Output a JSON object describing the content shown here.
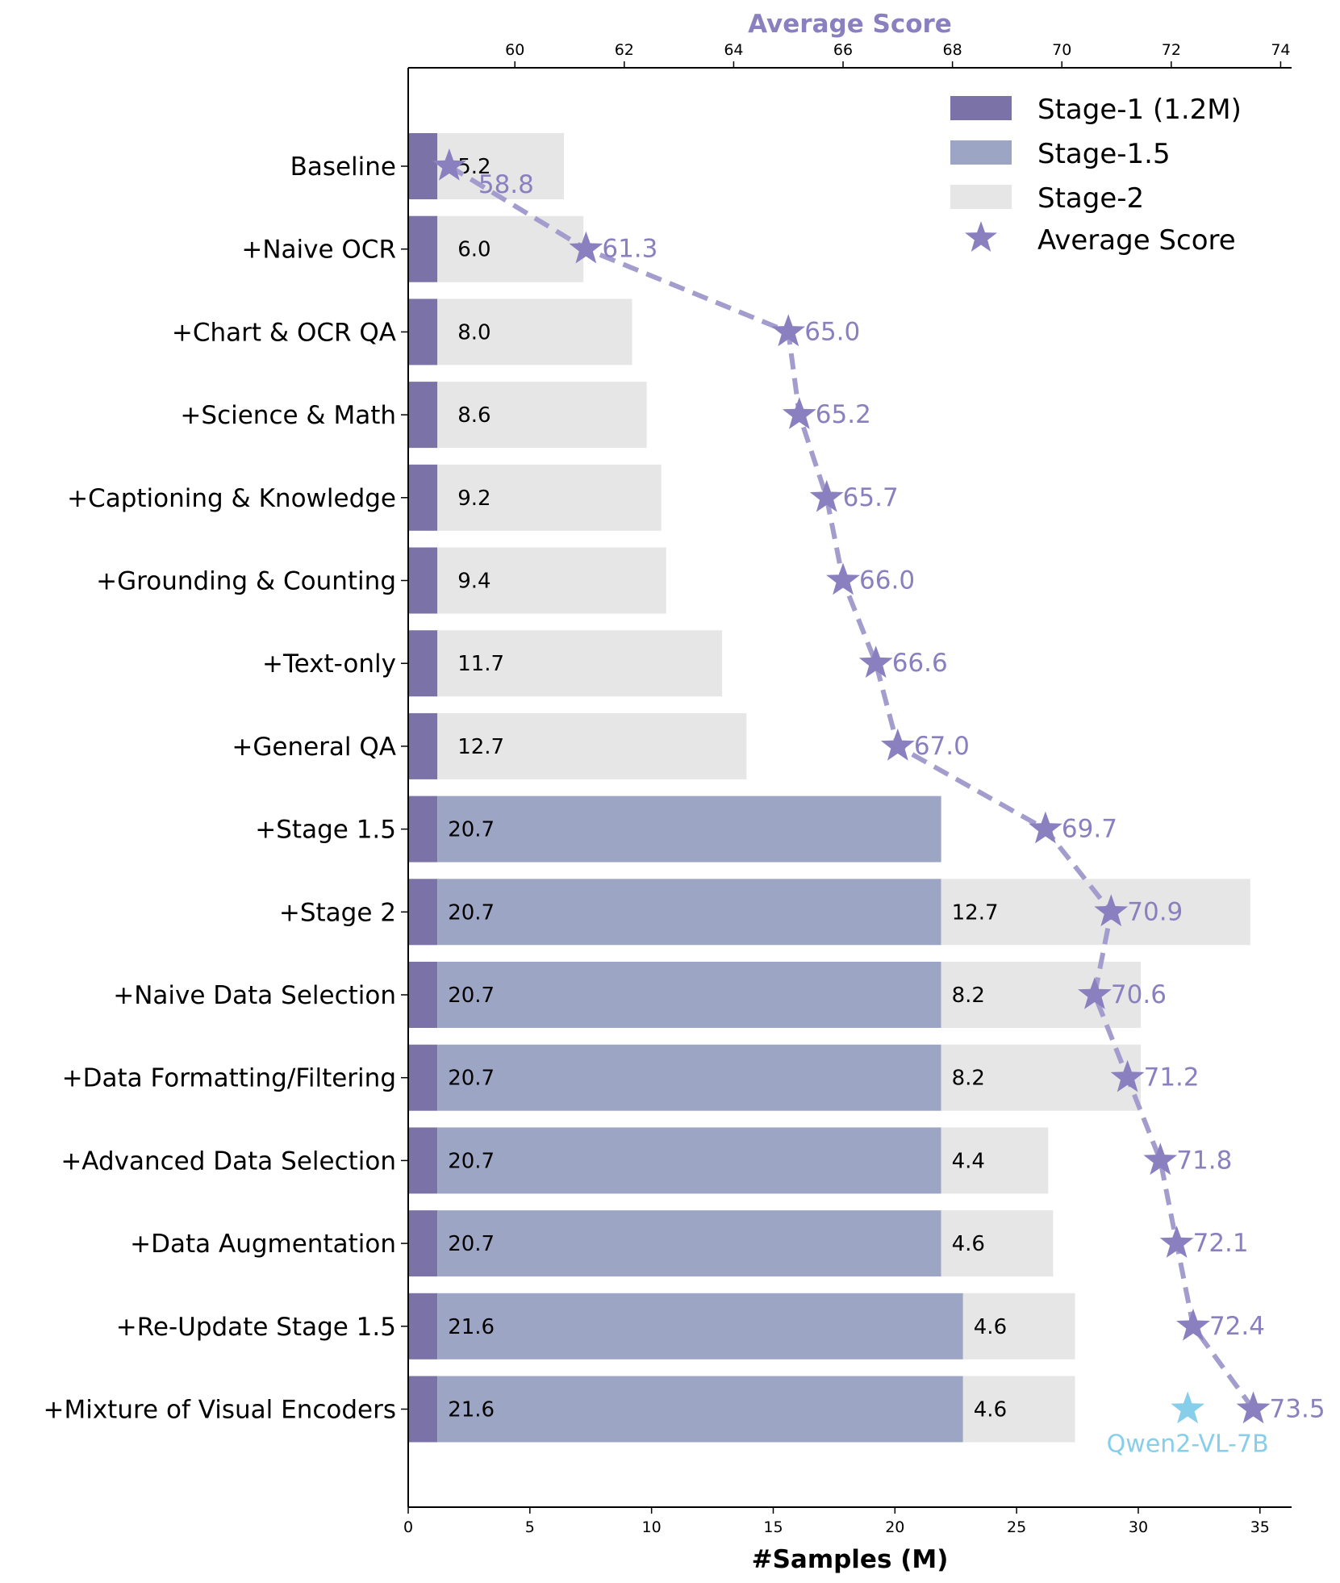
{
  "chart_data": {
    "type": "bar",
    "orientation": "horizontal",
    "stacked": true,
    "xlabel": "#Samples (M)",
    "x2label": "Average Score",
    "xlim": [
      0,
      36.3
    ],
    "x2lim": [
      58.05,
      74.2
    ],
    "xticks": [
      0,
      5,
      10,
      15,
      20,
      25,
      30,
      35
    ],
    "x2ticks": [
      60,
      62,
      64,
      66,
      68,
      70,
      72,
      74
    ],
    "categories": [
      "Baseline",
      "+Naive OCR",
      "+Chart & OCR QA",
      "+Science & Math",
      "+Captioning & Knowledge",
      "+Grounding & Counting",
      "+Text-only",
      "+General QA",
      "+Stage 1.5",
      "+Stage 2",
      "+Naive Data Selection",
      "+Data Formatting/Filtering",
      "+Advanced Data Selection",
      "+Data Augmentation",
      "+Re-Update Stage 1.5",
      "+Mixture of Visual Encoders"
    ],
    "series": [
      {
        "name": "Stage-1 (1.2M)",
        "color": "#7b72a8",
        "values": [
          1.2,
          1.2,
          1.2,
          1.2,
          1.2,
          1.2,
          1.2,
          1.2,
          1.2,
          1.2,
          1.2,
          1.2,
          1.2,
          1.2,
          1.2,
          1.2
        ]
      },
      {
        "name": "Stage-1.5",
        "color": "#9da5c5",
        "values": [
          0,
          0,
          0,
          0,
          0,
          0,
          0,
          0,
          20.7,
          20.7,
          20.7,
          20.7,
          20.7,
          20.7,
          21.6,
          21.6
        ]
      },
      {
        "name": "Stage-2",
        "color": "#e6e6e6",
        "values": [
          5.2,
          6.0,
          8.0,
          8.6,
          9.2,
          9.4,
          11.7,
          12.7,
          0,
          12.7,
          8.2,
          8.2,
          4.4,
          4.6,
          4.6,
          4.6
        ]
      },
      {
        "name": "Average Score",
        "color": "#8a80c0",
        "axis": "top",
        "values": [
          58.8,
          61.3,
          65.0,
          65.2,
          65.7,
          66.0,
          66.6,
          67.0,
          69.7,
          70.9,
          70.6,
          71.2,
          71.8,
          72.1,
          72.4,
          73.5
        ]
      }
    ],
    "bar_labels": [
      {
        "stage15": "",
        "stage2": "5.2"
      },
      {
        "stage15": "",
        "stage2": "6.0"
      },
      {
        "stage15": "",
        "stage2": "8.0"
      },
      {
        "stage15": "",
        "stage2": "8.6"
      },
      {
        "stage15": "",
        "stage2": "9.2"
      },
      {
        "stage15": "",
        "stage2": "9.4"
      },
      {
        "stage15": "",
        "stage2": "11.7"
      },
      {
        "stage15": "",
        "stage2": "12.7"
      },
      {
        "stage15": "20.7",
        "stage2": ""
      },
      {
        "stage15": "20.7",
        "stage2": "12.7"
      },
      {
        "stage15": "20.7",
        "stage2": "8.2"
      },
      {
        "stage15": "20.7",
        "stage2": "8.2"
      },
      {
        "stage15": "20.7",
        "stage2": "4.4"
      },
      {
        "stage15": "20.7",
        "stage2": "4.6"
      },
      {
        "stage15": "21.6",
        "stage2": "4.6"
      },
      {
        "stage15": "21.6",
        "stage2": "4.6"
      }
    ],
    "score_labels": [
      "58.8",
      "61.3",
      "65.0",
      "65.2",
      "65.7",
      "66.0",
      "66.6",
      "67.0",
      "69.7",
      "70.9",
      "70.6",
      "71.2",
      "71.8",
      "72.1",
      "72.4",
      "73.5"
    ],
    "reference_point": {
      "name": "Qwen2-VL-7B",
      "score": 72.3,
      "row": 15,
      "color": "#87ceeb"
    },
    "legend": {
      "position": "top-right",
      "entries": [
        "Stage-1 (1.2M)",
        "Stage-1.5",
        "Stage-2",
        "Average Score"
      ]
    }
  }
}
